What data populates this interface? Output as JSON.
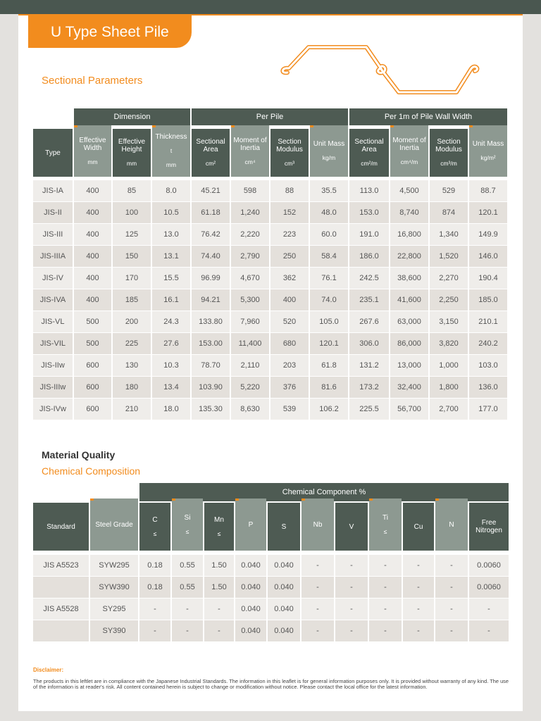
{
  "header": {
    "title": "U Type Sheet Pile"
  },
  "sectional": {
    "title": "Sectional Parameters",
    "groups": [
      "Dimension",
      "Per Pile",
      "Per 1m of Pile Wall Width"
    ],
    "columns": [
      {
        "name": "Type"
      },
      {
        "name": "Effective Width",
        "unit": "mm"
      },
      {
        "name": "Effective Height",
        "unit": "mm"
      },
      {
        "name": "Thickness",
        "symbol": "t",
        "unit": "mm"
      },
      {
        "name": "Sectional Area",
        "unit": "cm²"
      },
      {
        "name": "Moment of Inertia",
        "unit": "cm⁴"
      },
      {
        "name": "Section Modulus",
        "unit": "cm³"
      },
      {
        "name": "Unit Mass",
        "unit": "kg/m"
      },
      {
        "name": "Sectional Area",
        "unit": "cm²/m"
      },
      {
        "name": "Moment of Inertia",
        "unit": "cm⁴/m"
      },
      {
        "name": "Section Modulus",
        "unit": "cm³/m"
      },
      {
        "name": "Unit Mass",
        "unit": "kg/m²"
      }
    ],
    "rows": [
      [
        "JIS-IA",
        "400",
        "85",
        "8.0",
        "45.21",
        "598",
        "88",
        "35.5",
        "113.0",
        "4,500",
        "529",
        "88.7"
      ],
      [
        "JIS-II",
        "400",
        "100",
        "10.5",
        "61.18",
        "1,240",
        "152",
        "48.0",
        "153.0",
        "8,740",
        "874",
        "120.1"
      ],
      [
        "JIS-III",
        "400",
        "125",
        "13.0",
        "76.42",
        "2,220",
        "223",
        "60.0",
        "191.0",
        "16,800",
        "1,340",
        "149.9"
      ],
      [
        "JIS-IIIA",
        "400",
        "150",
        "13.1",
        "74.40",
        "2,790",
        "250",
        "58.4",
        "186.0",
        "22,800",
        "1,520",
        "146.0"
      ],
      [
        "JIS-IV",
        "400",
        "170",
        "15.5",
        "96.99",
        "4,670",
        "362",
        "76.1",
        "242.5",
        "38,600",
        "2,270",
        "190.4"
      ],
      [
        "JIS-IVA",
        "400",
        "185",
        "16.1",
        "94.21",
        "5,300",
        "400",
        "74.0",
        "235.1",
        "41,600",
        "2,250",
        "185.0"
      ],
      [
        "JIS-VL",
        "500",
        "200",
        "24.3",
        "133.80",
        "7,960",
        "520",
        "105.0",
        "267.6",
        "63,000",
        "3,150",
        "210.1"
      ],
      [
        "JIS-VIL",
        "500",
        "225",
        "27.6",
        "153.00",
        "11,400",
        "680",
        "120.1",
        "306.0",
        "86,000",
        "3,820",
        "240.2"
      ],
      [
        "JIS-IIw",
        "600",
        "130",
        "10.3",
        "78.70",
        "2,110",
        "203",
        "61.8",
        "131.2",
        "13,000",
        "1,000",
        "103.0"
      ],
      [
        "JIS-IIIw",
        "600",
        "180",
        "13.4",
        "103.90",
        "5,220",
        "376",
        "81.6",
        "173.2",
        "32,400",
        "1,800",
        "136.0"
      ],
      [
        "JIS-IVw",
        "600",
        "210",
        "18.0",
        "135.30",
        "8,630",
        "539",
        "106.2",
        "225.5",
        "56,700",
        "2,700",
        "177.0"
      ]
    ]
  },
  "material": {
    "title": "Material Quality",
    "subtitle": "Chemical Composition",
    "group": "Chemical Component %",
    "columns": [
      {
        "name": "Standard"
      },
      {
        "name": "Steel Grade"
      },
      {
        "name": "C",
        "symbol": "≤"
      },
      {
        "name": "Si",
        "symbol": "≤"
      },
      {
        "name": "Mn",
        "symbol": "≤"
      },
      {
        "name": "P"
      },
      {
        "name": "S"
      },
      {
        "name": "Nb"
      },
      {
        "name": "V"
      },
      {
        "name": "Ti",
        "symbol": "≤"
      },
      {
        "name": "Cu"
      },
      {
        "name": "N"
      },
      {
        "name": "Free Nitrogen"
      }
    ],
    "rows": [
      [
        "JIS A5523",
        "SYW295",
        "0.18",
        "0.55",
        "1.50",
        "0.040",
        "0.040",
        "-",
        "-",
        "-",
        "-",
        "-",
        "0.0060"
      ],
      [
        null,
        "SYW390",
        "0.18",
        "0.55",
        "1.50",
        "0.040",
        "0.040",
        "-",
        "-",
        "-",
        "-",
        "-",
        "0.0060"
      ],
      [
        "JIS A5528",
        "SY295",
        "-",
        "-",
        "-",
        "0.040",
        "0.040",
        "-",
        "-",
        "-",
        "-",
        "-",
        "-"
      ],
      [
        null,
        "SY390",
        "-",
        "-",
        "-",
        "0.040",
        "0.040",
        "-",
        "-",
        "-",
        "-",
        "-",
        "-"
      ]
    ]
  },
  "disclaimer": {
    "title": "Disclaimer:",
    "text": "The products in this leftlet are in compliance with the Japanese Industrial Standards. The information in this leaflet is for general information purposes only. It is provided without warranty of any kind. The use of the information is at reader's risk. All content contained herein is subject to change or modification without notice. Please contact the local office for the latest information."
  }
}
